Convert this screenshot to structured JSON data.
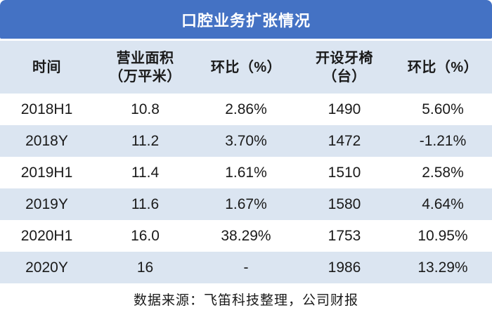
{
  "title": "口腔业务扩张情况",
  "source_note": "数据来源：飞笛科技整理，公司财报",
  "colors": {
    "title_bar_blue": "#4472C4",
    "stripe_light_blue": "#DBE5F1",
    "title_text": "#FFFFFF",
    "body_text": "#1A1A1A"
  },
  "chart_data": {
    "type": "table",
    "title": "口腔业务扩张情况",
    "columns": [
      "时间",
      "营业面积（万平米）",
      "环比（%）",
      "开设牙椅（台）",
      "环比（%）"
    ],
    "column_header_lines": [
      [
        "时间"
      ],
      [
        "营业面积",
        "（万平米）"
      ],
      [
        "环比（%）"
      ],
      [
        "开设牙椅",
        "（台）"
      ],
      [
        "环比（%）"
      ]
    ],
    "rows": [
      [
        "2018H1",
        "10.8",
        "2.86%",
        "1490",
        "5.60%"
      ],
      [
        "2018Y",
        "11.2",
        "3.70%",
        "1472",
        "-1.21%"
      ],
      [
        "2019H1",
        "11.4",
        "1.61%",
        "1510",
        "2.58%"
      ],
      [
        "2019Y",
        "11.6",
        "1.67%",
        "1580",
        "4.64%"
      ],
      [
        "2020H1",
        "16.0",
        "38.29%",
        "1753",
        "10.95%"
      ],
      [
        "2020Y",
        "16",
        "-",
        "1986",
        "13.29%"
      ]
    ],
    "source_note": "数据来源：飞笛科技整理，公司财报"
  }
}
